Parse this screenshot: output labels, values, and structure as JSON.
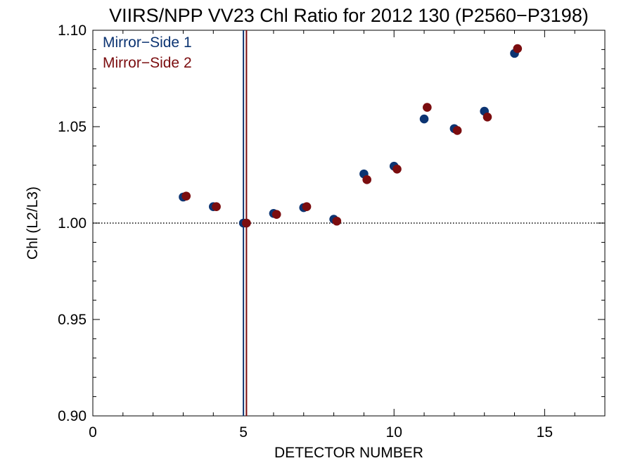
{
  "chart_data": {
    "type": "scatter",
    "title": "VIIRS/NPP VV23 Chl Ratio for 2012 130 (P2560−P3198)",
    "xlabel": "DETECTOR NUMBER",
    "ylabel": "Chl (L2/L3)",
    "xlim": [
      0,
      17
    ],
    "ylim": [
      0.9,
      1.1
    ],
    "xticks": [
      0,
      5,
      10,
      15
    ],
    "xtick_labels": [
      "0",
      "5",
      "10",
      "15"
    ],
    "yticks": [
      0.9,
      0.95,
      1.0,
      1.05,
      1.1
    ],
    "ytick_labels": [
      "0.90",
      "0.95",
      "1.00",
      "1.05",
      "1.10"
    ],
    "reference_line_y": 1.0,
    "legend_position": "top-left",
    "series": [
      {
        "name": "Mirror−Side 1",
        "color": "#0c3472",
        "x": [
          3,
          4,
          5,
          6,
          7,
          8,
          9,
          10,
          11,
          12,
          13,
          14
        ],
        "y": [
          1.0135,
          1.0085,
          1.0,
          1.005,
          1.008,
          1.002,
          1.0255,
          1.0295,
          1.054,
          1.049,
          1.058,
          1.088
        ],
        "vline_x": 5.0
      },
      {
        "name": "Mirror−Side 2",
        "color": "#7b0d0f",
        "x": [
          3.1,
          4.1,
          5.1,
          6.1,
          7.1,
          8.1,
          9.1,
          10.1,
          11.1,
          12.1,
          13.1,
          14.1
        ],
        "y": [
          1.014,
          1.0085,
          1.0,
          1.0045,
          1.0085,
          1.001,
          1.0225,
          1.028,
          1.06,
          1.048,
          1.055,
          1.0905
        ],
        "vline_x": 5.1
      }
    ]
  }
}
